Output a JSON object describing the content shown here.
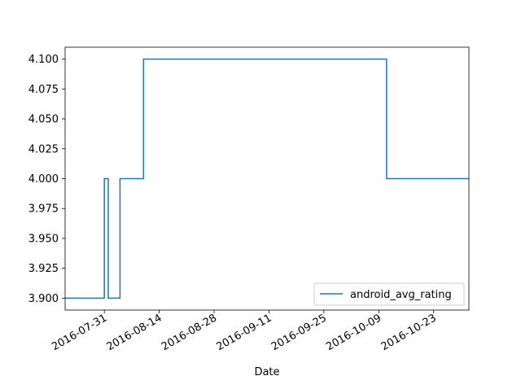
{
  "chart_data": {
    "type": "line",
    "drawstyle": "steps-post",
    "title": "",
    "xlabel": "Date",
    "ylabel": "",
    "x_range": [
      "2016-07-21",
      "2016-11-01"
    ],
    "ylim": [
      3.89,
      4.11
    ],
    "x_ticks": [
      "2016-07-31",
      "2016-08-14",
      "2016-08-28",
      "2016-09-11",
      "2016-09-25",
      "2016-10-09",
      "2016-10-23"
    ],
    "y_ticks": [
      "3.900",
      "3.925",
      "3.950",
      "3.975",
      "4.000",
      "4.025",
      "4.050",
      "4.075",
      "4.100"
    ],
    "legend_position": "lower-right",
    "grid": false,
    "series": [
      {
        "name": "android_avg_rating",
        "color": "#1f77b4",
        "points": [
          [
            "2016-07-21",
            3.9
          ],
          [
            "2016-07-31",
            4.0
          ],
          [
            "2016-08-01",
            3.9
          ],
          [
            "2016-08-04",
            4.0
          ],
          [
            "2016-08-10",
            4.1
          ],
          [
            "2016-10-11",
            4.0
          ],
          [
            "2016-11-01",
            4.0
          ]
        ]
      }
    ]
  }
}
